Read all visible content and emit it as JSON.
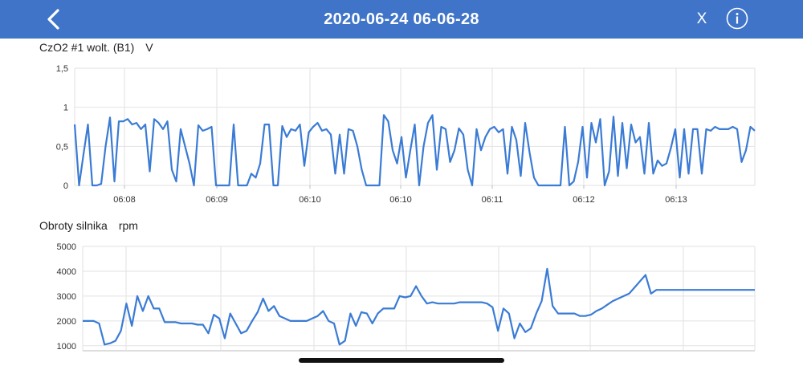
{
  "header": {
    "title": "2020-06-24 06-06-28",
    "back_icon": "chevron-left-icon",
    "close_label": "X",
    "info_icon": "info-icon",
    "background": "#3f74c8"
  },
  "line_color": "#3a7bd5",
  "chart_data": [
    {
      "type": "line",
      "title": "CzO2 #1 wolt. (B1)",
      "unit": "V",
      "ylim": [
        0,
        1.5
      ],
      "yticks": [
        "0",
        "0,5",
        "1",
        "1,5"
      ],
      "ytick_values": [
        0,
        0.5,
        1,
        1.5
      ],
      "xticks": [
        "06:08",
        "06:09",
        "06:10",
        "06:10",
        "06:11",
        "06:12",
        "06:13"
      ],
      "grid": true,
      "values": [
        0.78,
        0.0,
        0.4,
        0.78,
        0.0,
        0.0,
        0.02,
        0.5,
        0.87,
        0.05,
        0.82,
        0.82,
        0.85,
        0.78,
        0.8,
        0.72,
        0.78,
        0.18,
        0.85,
        0.8,
        0.72,
        0.82,
        0.2,
        0.05,
        0.72,
        0.5,
        0.28,
        0.0,
        0.77,
        0.7,
        0.72,
        0.75,
        0.0,
        0.0,
        0.0,
        0.0,
        0.78,
        0.0,
        0.0,
        0.0,
        0.15,
        0.1,
        0.28,
        0.78,
        0.78,
        0.0,
        0.0,
        0.76,
        0.62,
        0.72,
        0.7,
        0.78,
        0.25,
        0.68,
        0.75,
        0.8,
        0.7,
        0.72,
        0.65,
        0.15,
        0.65,
        0.15,
        0.72,
        0.7,
        0.5,
        0.2,
        0.0,
        0.0,
        0.0,
        0.0,
        0.9,
        0.82,
        0.45,
        0.28,
        0.62,
        0.1,
        0.45,
        0.78,
        0.0,
        0.5,
        0.8,
        0.9,
        0.2,
        0.75,
        0.72,
        0.3,
        0.45,
        0.73,
        0.65,
        0.2,
        0.0,
        0.72,
        0.45,
        0.62,
        0.72,
        0.75,
        0.68,
        0.72,
        0.15,
        0.75,
        0.58,
        0.12,
        0.8,
        0.42,
        0.1,
        0.0,
        0.0,
        0.0,
        0.0,
        0.0,
        0.0,
        0.75,
        0.0,
        0.05,
        0.3,
        0.75,
        0.1,
        0.8,
        0.55,
        0.85,
        0.0,
        0.18,
        0.88,
        0.12,
        0.8,
        0.22,
        0.78,
        0.55,
        0.62,
        0.15,
        0.8,
        0.15,
        0.32,
        0.25,
        0.28,
        0.48,
        0.72,
        0.1,
        0.72,
        0.15,
        0.72,
        0.72,
        0.15,
        0.72,
        0.7,
        0.75,
        0.72,
        0.72,
        0.72,
        0.75,
        0.72,
        0.3,
        0.45,
        0.75,
        0.7
      ]
    },
    {
      "type": "line",
      "title": "Obroty silnika",
      "unit": "rpm",
      "ylim": [
        800,
        5000
      ],
      "yticks": [
        "1000",
        "2000",
        "3000",
        "4000",
        "5000"
      ],
      "ytick_values": [
        1000,
        2000,
        3000,
        4000,
        5000
      ],
      "grid": true,
      "values": [
        2000,
        2000,
        2000,
        1900,
        1050,
        1100,
        1200,
        1600,
        2700,
        1800,
        3000,
        2400,
        3000,
        2500,
        2500,
        1950,
        1950,
        1950,
        1900,
        1900,
        1900,
        1850,
        1850,
        1500,
        2250,
        2100,
        1300,
        2300,
        1900,
        1500,
        1600,
        2000,
        2350,
        2900,
        2400,
        2600,
        2200,
        2100,
        2000,
        2000,
        2000,
        2000,
        2100,
        2200,
        2400,
        2000,
        1900,
        1050,
        1200,
        2300,
        1800,
        2350,
        2300,
        1900,
        2300,
        2500,
        2500,
        2500,
        3000,
        2950,
        3000,
        3400,
        3000,
        2700,
        2750,
        2700,
        2700,
        2700,
        2700,
        2750,
        2750,
        2750,
        2750,
        2750,
        2700,
        2550,
        1600,
        2500,
        2300,
        1300,
        1900,
        1550,
        1700,
        2300,
        2800,
        4100,
        2600,
        2300,
        2300,
        2300,
        2300,
        2200,
        2200,
        2250,
        2400,
        2500,
        2650,
        2800,
        2900,
        3000,
        3100,
        3350,
        3600,
        3850,
        3100,
        3250,
        3250,
        3250,
        3250,
        3250,
        3250,
        3250,
        3250,
        3250,
        3250,
        3250,
        3250,
        3250,
        3250,
        3250,
        3250,
        3250,
        3250,
        3250
      ]
    }
  ]
}
